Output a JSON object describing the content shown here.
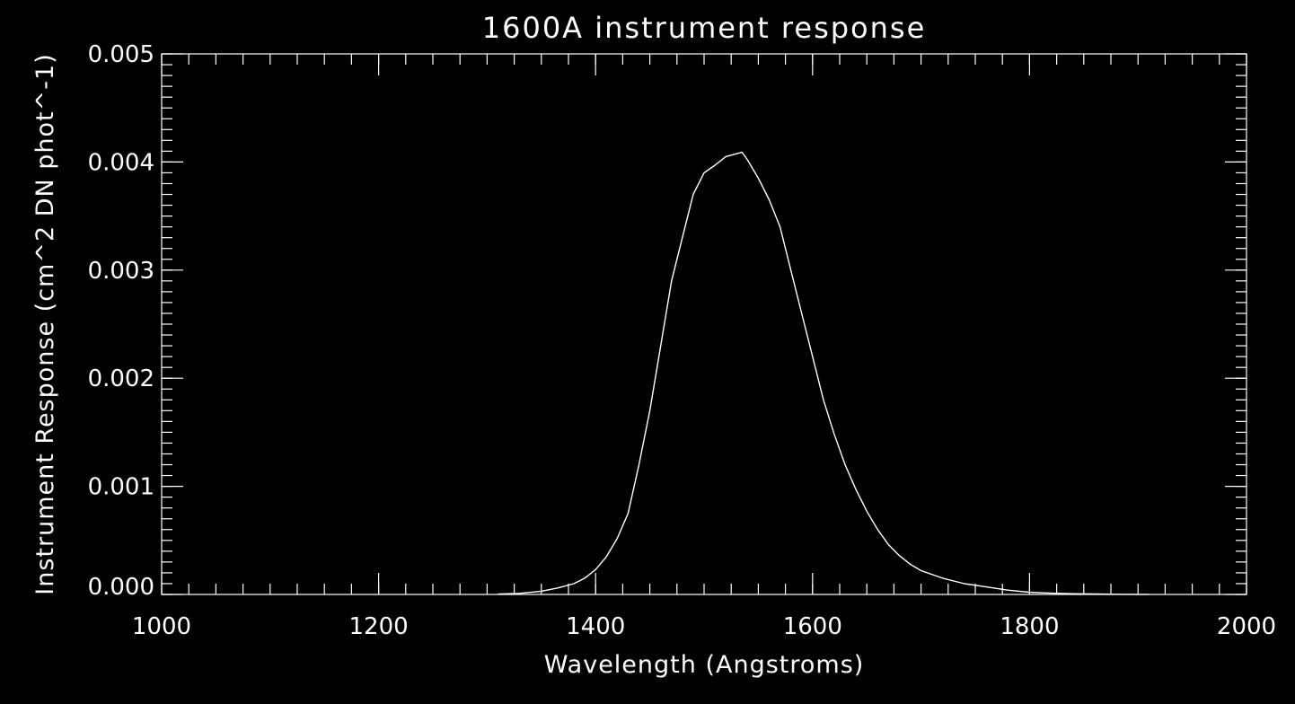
{
  "chart_data": {
    "type": "line",
    "title": "1600A instrument response",
    "xlabel": "Wavelength (Angstroms)",
    "ylabel": "Instrument Response (cm^2 DN phot^-1)",
    "xlim": [
      1000,
      2000
    ],
    "ylim": [
      0,
      0.005
    ],
    "xticks": [
      1000,
      1200,
      1400,
      1600,
      1800,
      2000
    ],
    "xtick_labels": [
      "1000",
      "1200",
      "1400",
      "1600",
      "1800",
      "2000"
    ],
    "yticks": [
      0,
      0.001,
      0.002,
      0.003,
      0.004,
      0.005
    ],
    "ytick_labels": [
      "0.000",
      "0.001",
      "0.002",
      "0.003",
      "0.004",
      "0.005"
    ],
    "x_minor_step": 25,
    "y_minor_step": 0.0001,
    "grid": false,
    "colors": {
      "background": "#000000",
      "foreground": "#ffffff"
    },
    "series": [
      {
        "x": [
          1310,
          1330,
          1350,
          1365,
          1380,
          1390,
          1400,
          1410,
          1420,
          1430,
          1440,
          1450,
          1460,
          1470,
          1480,
          1490,
          1500,
          1510,
          1520,
          1535,
          1540,
          1550,
          1560,
          1570,
          1580,
          1590,
          1600,
          1610,
          1620,
          1630,
          1640,
          1650,
          1660,
          1670,
          1680,
          1690,
          1700,
          1720,
          1740,
          1760,
          1780,
          1800,
          1820,
          1840,
          1860,
          1880,
          1900,
          1910
        ],
        "y": [
          3e-06,
          1e-05,
          3e-05,
          6e-05,
          0.0001,
          0.00015,
          0.00023,
          0.00035,
          0.00052,
          0.00075,
          0.0012,
          0.0017,
          0.0023,
          0.0029,
          0.0033,
          0.0037,
          0.0039,
          0.00397,
          0.00405,
          0.00409,
          0.00402,
          0.00385,
          0.00365,
          0.0034,
          0.003,
          0.0026,
          0.0022,
          0.0018,
          0.00148,
          0.0012,
          0.00097,
          0.00077,
          0.0006,
          0.00046,
          0.00036,
          0.00028,
          0.00022,
          0.00015,
          0.0001,
          7e-05,
          4e-05,
          2e-05,
          1.2e-05,
          7e-06,
          4e-06,
          2e-06,
          1e-06,
          5e-07
        ]
      }
    ]
  }
}
